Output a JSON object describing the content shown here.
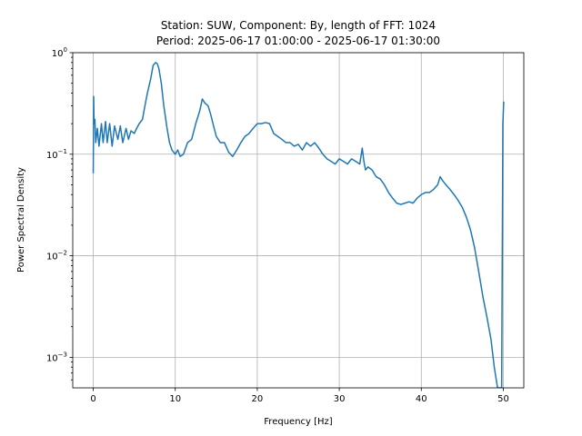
{
  "chart_data": {
    "type": "line",
    "title": "Station: SUW, Component: By, length of FFT: 1024",
    "subtitle": "Period: 2025-06-17 01:00:00 - 2025-06-17 01:30:00",
    "xlabel": "Frequency [Hz]",
    "ylabel": "Power Spectral Density",
    "xlim": [
      -2.5,
      52.5
    ],
    "ylim": [
      0.0005,
      1.0
    ],
    "yscale": "log",
    "grid": true,
    "x_ticks": [
      0,
      10,
      20,
      30,
      40,
      50
    ],
    "y_ticks": [
      {
        "value": 1,
        "base": "10",
        "exp": "0"
      },
      {
        "value": 0.1,
        "base": "10",
        "exp": "−1"
      },
      {
        "value": 0.01,
        "base": "10",
        "exp": "−2"
      },
      {
        "value": 0.001,
        "base": "10",
        "exp": "−3"
      }
    ],
    "series": [
      {
        "color": "#1f77b4",
        "x": [
          0,
          0.05,
          0.1,
          0.2,
          0.3,
          0.5,
          0.7,
          1.0,
          1.2,
          1.5,
          1.7,
          2.0,
          2.3,
          2.6,
          3.0,
          3.3,
          3.6,
          4.0,
          4.3,
          4.6,
          5.0,
          5.3,
          5.6,
          6.0,
          6.3,
          6.6,
          7.0,
          7.3,
          7.6,
          7.8,
          8.0,
          8.3,
          8.6,
          9.0,
          9.3,
          9.6,
          10.0,
          10.3,
          10.6,
          11.0,
          11.5,
          12.0,
          12.5,
          13.0,
          13.3,
          13.6,
          14.0,
          14.3,
          14.6,
          15.0,
          15.5,
          16.0,
          16.5,
          17.0,
          17.5,
          18.0,
          18.5,
          19.0,
          19.5,
          20.0,
          20.5,
          21.0,
          21.5,
          22.0,
          22.5,
          23.0,
          23.5,
          24.0,
          24.5,
          25.0,
          25.5,
          26.0,
          26.5,
          27.0,
          27.5,
          28.0,
          28.5,
          29.0,
          29.5,
          30.0,
          30.5,
          31.0,
          31.5,
          32.0,
          32.5,
          32.8,
          33.0,
          33.2,
          33.5,
          34.0,
          34.5,
          35.0,
          35.5,
          36.0,
          36.5,
          37.0,
          37.5,
          38.0,
          38.5,
          39.0,
          39.5,
          40.0,
          40.5,
          41.0,
          41.5,
          42.0,
          42.3,
          42.6,
          43.0,
          43.5,
          44.0,
          44.5,
          45.0,
          45.5,
          46.0,
          46.5,
          47.0,
          47.5,
          48.0,
          48.5,
          48.9,
          49.3,
          49.6,
          49.8,
          49.95,
          50.05
        ],
        "y": [
          0.065,
          0.37,
          0.2,
          0.22,
          0.13,
          0.18,
          0.12,
          0.2,
          0.13,
          0.21,
          0.13,
          0.2,
          0.12,
          0.19,
          0.14,
          0.19,
          0.13,
          0.18,
          0.14,
          0.17,
          0.16,
          0.18,
          0.2,
          0.22,
          0.3,
          0.4,
          0.55,
          0.75,
          0.8,
          0.78,
          0.7,
          0.5,
          0.3,
          0.18,
          0.13,
          0.11,
          0.1,
          0.11,
          0.095,
          0.1,
          0.13,
          0.14,
          0.2,
          0.27,
          0.35,
          0.32,
          0.3,
          0.25,
          0.2,
          0.15,
          0.13,
          0.13,
          0.105,
          0.095,
          0.11,
          0.13,
          0.15,
          0.16,
          0.18,
          0.2,
          0.2,
          0.205,
          0.2,
          0.16,
          0.15,
          0.14,
          0.13,
          0.13,
          0.12,
          0.125,
          0.11,
          0.13,
          0.12,
          0.13,
          0.115,
          0.1,
          0.09,
          0.085,
          0.08,
          0.09,
          0.085,
          0.08,
          0.09,
          0.085,
          0.08,
          0.115,
          0.085,
          0.07,
          0.075,
          0.07,
          0.06,
          0.057,
          0.05,
          0.042,
          0.037,
          0.033,
          0.032,
          0.033,
          0.034,
          0.033,
          0.037,
          0.04,
          0.042,
          0.042,
          0.045,
          0.05,
          0.06,
          0.055,
          0.05,
          0.045,
          0.04,
          0.035,
          0.03,
          0.024,
          0.018,
          0.012,
          0.007,
          0.004,
          0.0025,
          0.0015,
          0.0008,
          0.0005,
          0.0005,
          0.0005,
          0.2,
          0.33
        ]
      }
    ]
  }
}
